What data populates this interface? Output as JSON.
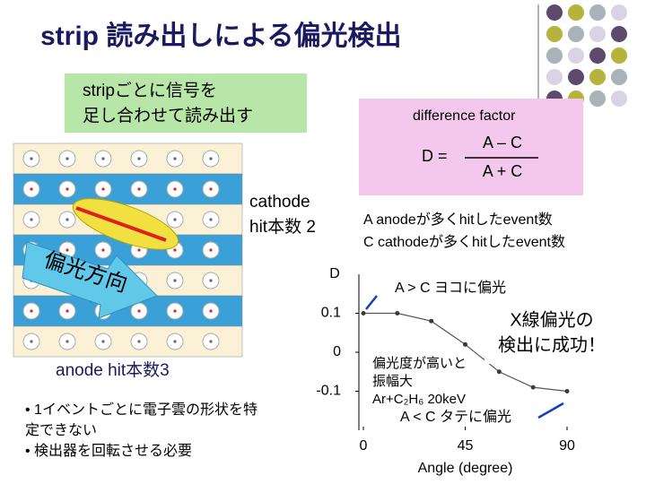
{
  "title": "strip 読み出しによる偏光検出",
  "readout_box": {
    "lines": [
      "stripごとに信号を",
      "足し合わせて読み出す"
    ]
  },
  "formula_box": {
    "heading": "difference factor",
    "lhs": "D =",
    "numerator": "A – C",
    "denominator": "A + C"
  },
  "legend": [
    "A  anodeが多くhitしたevent数",
    "C  cathodeが多くhitしたevent数"
  ],
  "detector": {
    "cathode": [
      "cathode",
      "hit本数 2"
    ],
    "anode": "anode hit本数3",
    "direction": "偏光方向"
  },
  "bullets": [
    [
      "• 1イベントごとに電子雲の形状を特",
      "定できない"
    ],
    [
      "• 検出器を回転させる必要"
    ]
  ],
  "annotations": {
    "horizontal": "A > C  ヨコに偏光",
    "vertical": "A < C  タテに偏光",
    "success": [
      "X線偏光の",
      "検出に成功！"
    ],
    "amplitude": [
      "偏光度が高いと",
      "振幅大"
    ],
    "gas": "Ar+C₂H₆  20keV"
  },
  "chart_data": {
    "type": "scatter",
    "x_label": "Angle (degree)",
    "y_label": "D",
    "x": [
      0,
      15,
      30,
      45,
      60,
      75,
      90
    ],
    "values": [
      0.1,
      0.1,
      0.08,
      0.02,
      -0.05,
      -0.09,
      -0.1
    ],
    "color": "#3a3a3a",
    "xlim": [
      0,
      90
    ],
    "xticks": [
      0,
      45,
      90
    ],
    "ylim": [
      -0.2,
      0.2
    ],
    "yticks": [
      0.1,
      0,
      -0.1
    ]
  }
}
